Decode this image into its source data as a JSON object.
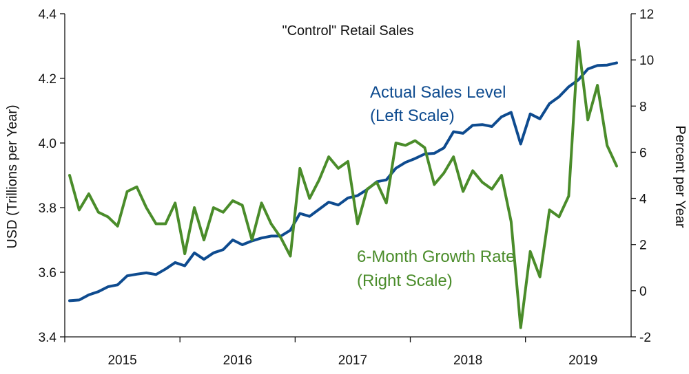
{
  "chart_data": {
    "type": "line",
    "title": "\"Control\" Retail Sales",
    "ylabel_left": "USD (Trillions per Year)",
    "ylabel_right": "Percent per Year",
    "ylim_left": [
      3.4,
      4.4
    ],
    "ylim_right": [
      -2,
      12
    ],
    "yticks_left": [
      "3.4",
      "3.6",
      "3.8",
      "4.0",
      "4.2",
      "4.4"
    ],
    "yticks_right": [
      "-2",
      "0",
      "2",
      "4",
      "6",
      "8",
      "10",
      "12"
    ],
    "year_labels": [
      "2015",
      "2016",
      "2017",
      "2018",
      "2019"
    ],
    "x_start": "2015-01",
    "colors": {
      "level": "#0e4b8f",
      "growth": "#4a8c2a"
    },
    "annotations": {
      "level_line1": "Actual Sales Level",
      "level_line2": "(Left Scale)",
      "growth_line1": "6-Month Growth Rate",
      "growth_line2": "(Right Scale)"
    },
    "series": [
      {
        "name": "Actual Sales Level",
        "axis": "left",
        "values": [
          3.512,
          3.514,
          3.53,
          3.54,
          3.555,
          3.561,
          3.589,
          3.594,
          3.598,
          3.593,
          3.61,
          3.63,
          3.62,
          3.66,
          3.64,
          3.66,
          3.67,
          3.7,
          3.685,
          3.697,
          3.706,
          3.712,
          3.712,
          3.73,
          3.782,
          3.773,
          3.795,
          3.817,
          3.808,
          3.83,
          3.837,
          3.856,
          3.88,
          3.886,
          3.922,
          3.94,
          3.952,
          3.966,
          3.968,
          3.985,
          4.035,
          4.03,
          4.055,
          4.057,
          4.051,
          4.081,
          4.095,
          3.997,
          4.09,
          4.075,
          4.122,
          4.143,
          4.174,
          4.195,
          4.229,
          4.24,
          4.241,
          4.248
        ]
      },
      {
        "name": "6-Month Growth Rate",
        "axis": "right",
        "values": [
          5.0,
          3.5,
          4.2,
          3.4,
          3.2,
          2.8,
          4.3,
          4.5,
          3.6,
          2.9,
          2.9,
          3.8,
          1.6,
          3.6,
          2.2,
          3.6,
          3.4,
          3.9,
          3.7,
          2.2,
          3.8,
          2.9,
          2.3,
          1.5,
          5.3,
          4.0,
          4.8,
          5.8,
          5.3,
          5.6,
          2.9,
          4.4,
          4.7,
          3.8,
          6.4,
          6.3,
          6.5,
          6.2,
          4.6,
          5.1,
          5.8,
          4.3,
          5.2,
          4.7,
          4.4,
          5.0,
          3.0,
          -1.6,
          1.7,
          0.6,
          3.5,
          3.2,
          4.1,
          10.8,
          7.4,
          8.9,
          6.3,
          5.4
        ]
      }
    ]
  }
}
